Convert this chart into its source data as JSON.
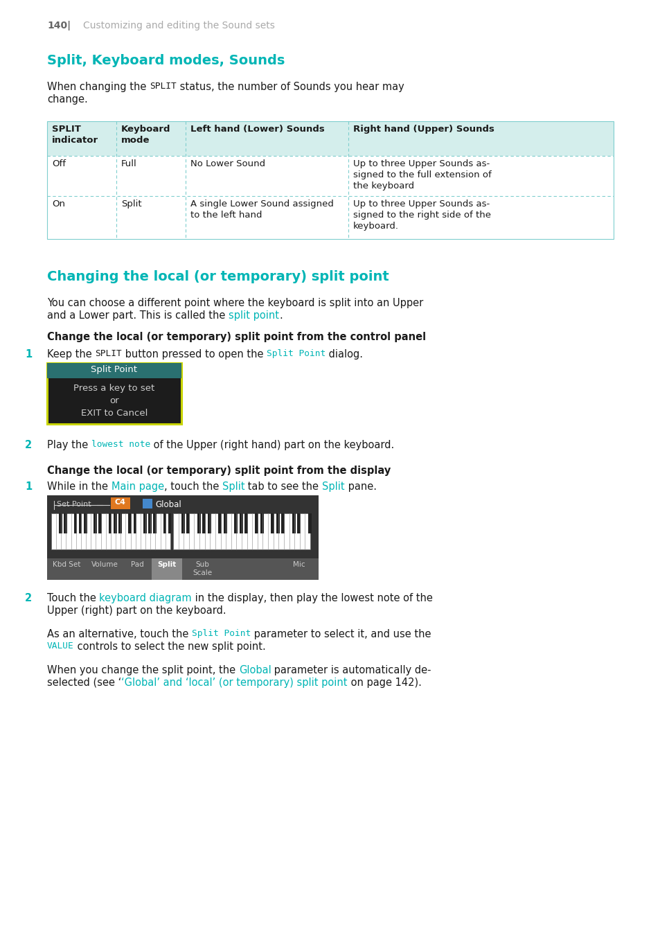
{
  "page_number": "140|",
  "page_subtitle": "Customizing and editing the Sound sets",
  "section1_title": "Split, Keyboard modes, Sounds",
  "section2_title": "Changing the local (or temporary) split point",
  "teal": "#00b5b5",
  "black": "#1a1a1a",
  "gray": "#aaaaaa",
  "table_header_bg": "#d4eeec",
  "table_border": "#7ecece",
  "bg": "#ffffff",
  "dialog_border": "#c8d400",
  "dialog_bg": "#1c1c1c",
  "dialog_header_bg": "#2a7070"
}
